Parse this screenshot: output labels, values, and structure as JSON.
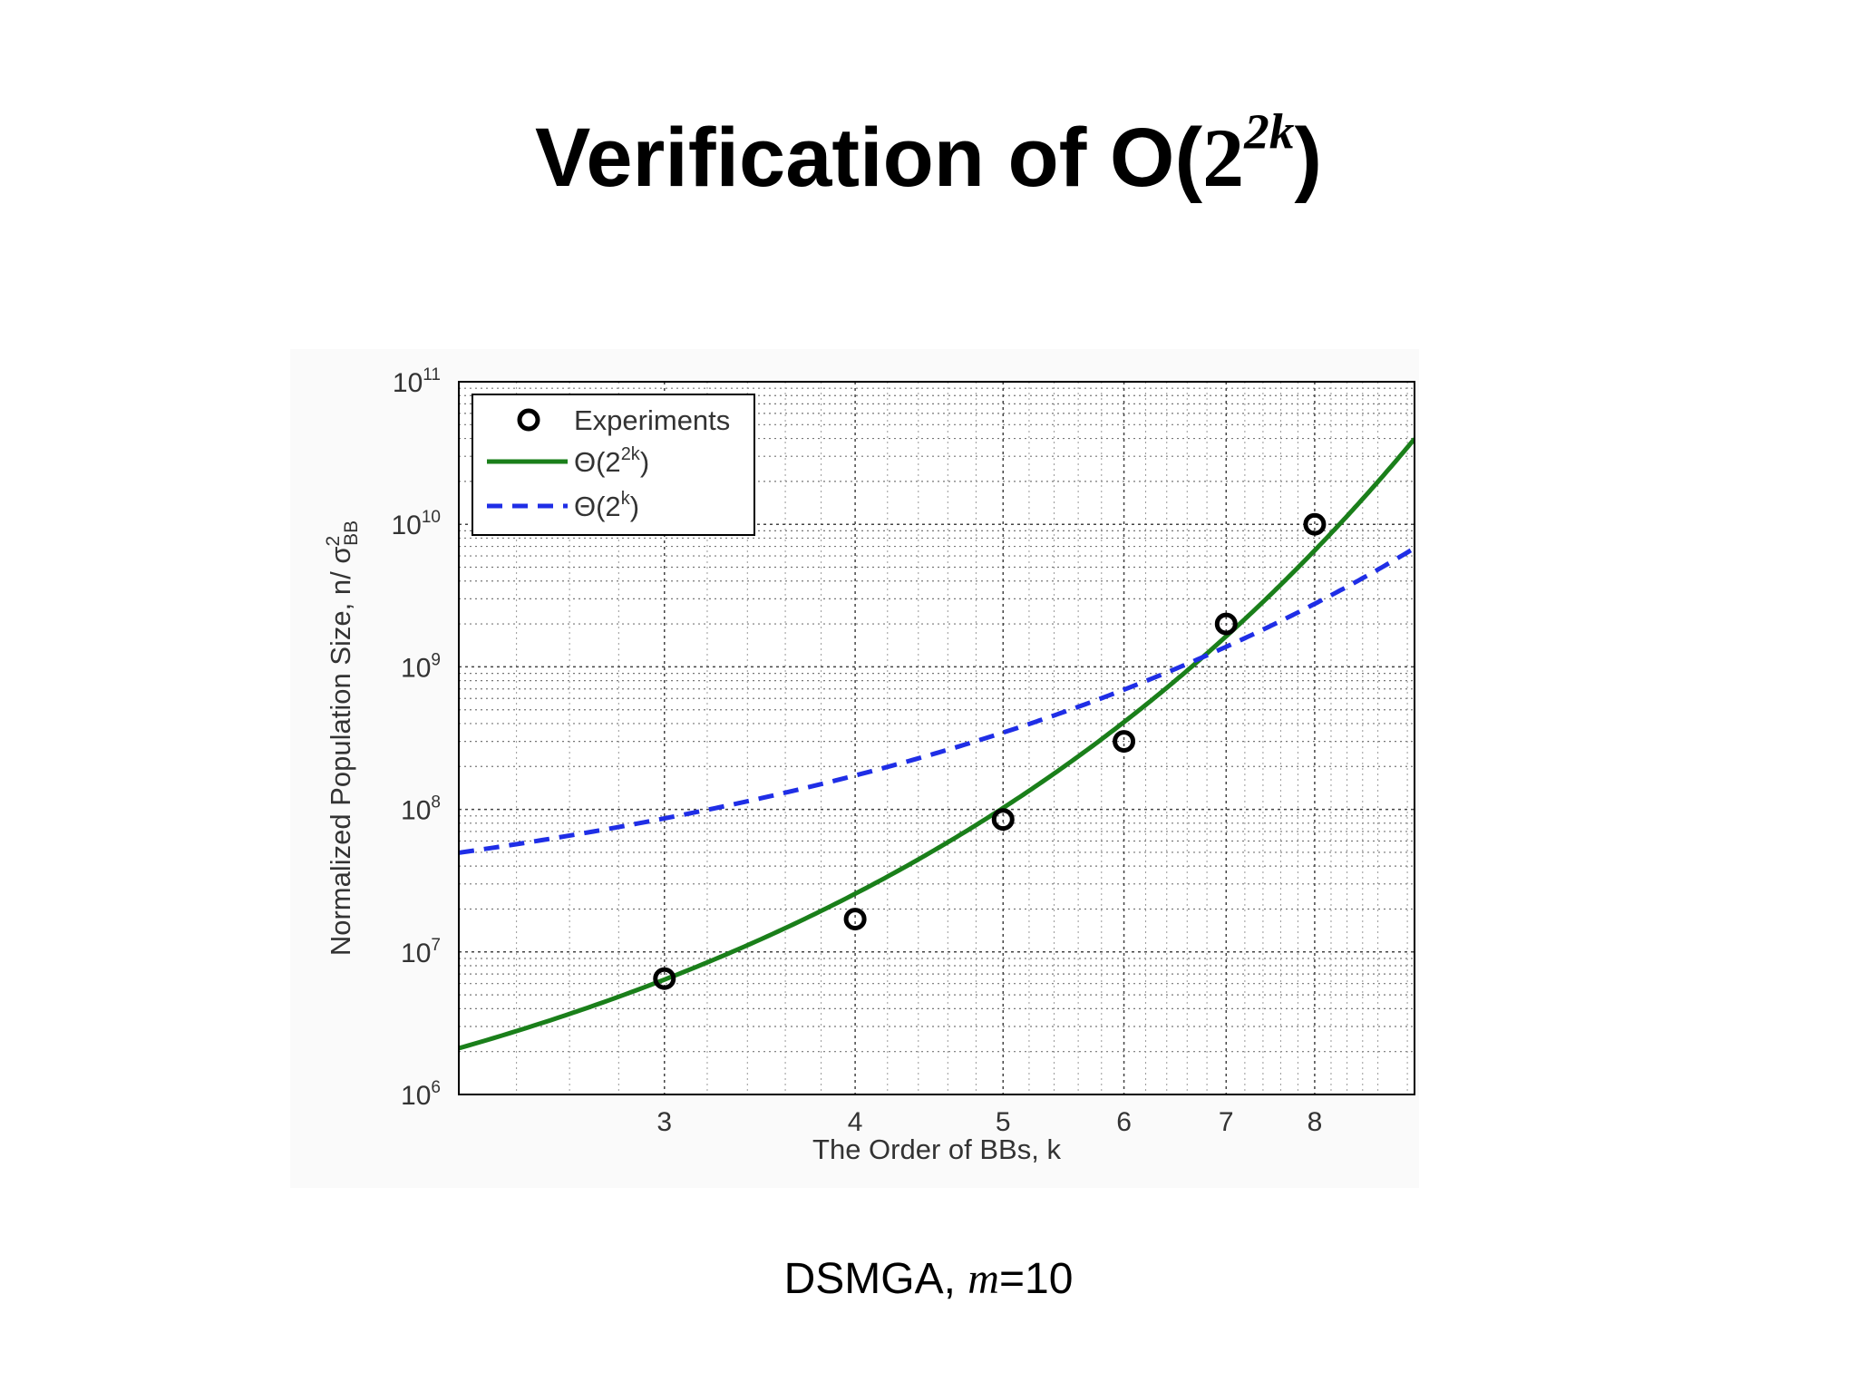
{
  "slide": {
    "title_prefix": "Verification of O(",
    "title_base": "2",
    "title_exponent": "2k",
    "title_suffix": ")",
    "caption_prefix": "DSMGA, ",
    "caption_var": "m",
    "caption_suffix": "=10"
  },
  "chart_data": {
    "type": "scatter",
    "xlabel": "The Order of BBs, k",
    "ylabel_main": "Normalized Population Size, n/ σ",
    "ylabel_sup": "2",
    "ylabel_sub": "BB",
    "x_scale": "log",
    "y_scale": "log",
    "xlim": [
      2.2,
      9.3
    ],
    "ylim": [
      1000000,
      100000000000
    ],
    "x_ticks": [
      3,
      4,
      5,
      6,
      7,
      8
    ],
    "y_ticks": [
      {
        "value": 1000000,
        "base": "10",
        "exp": "6"
      },
      {
        "value": 10000000,
        "base": "10",
        "exp": "7"
      },
      {
        "value": 100000000,
        "base": "10",
        "exp": "8"
      },
      {
        "value": 1000000000,
        "base": "10",
        "exp": "9"
      },
      {
        "value": 10000000000,
        "base": "10",
        "exp": "10"
      },
      {
        "value": 100000000000,
        "base": "10",
        "exp": "11"
      }
    ],
    "grid": true,
    "legend_position": "top-left",
    "series": [
      {
        "name": "Experiments",
        "kind": "markers",
        "color": "#000000",
        "x": [
          3,
          4,
          5,
          6,
          7,
          8
        ],
        "y": [
          6500000,
          17000000,
          85000000,
          300000000,
          2000000000,
          10000000000
        ]
      },
      {
        "name_prefix": "Θ(2",
        "name_sup": "2k",
        "name_suffix": ")",
        "kind": "line",
        "style": "solid",
        "color": "#1a7f1a",
        "formula": "c * 2^(2k)",
        "coefficient": 100000
      },
      {
        "name_prefix": "Θ(2",
        "name_sup": "k",
        "name_suffix": ")",
        "kind": "line",
        "style": "dashed",
        "color": "#1f2ee6",
        "formula": "c * 2^k",
        "coefficient": 10800000
      }
    ]
  }
}
